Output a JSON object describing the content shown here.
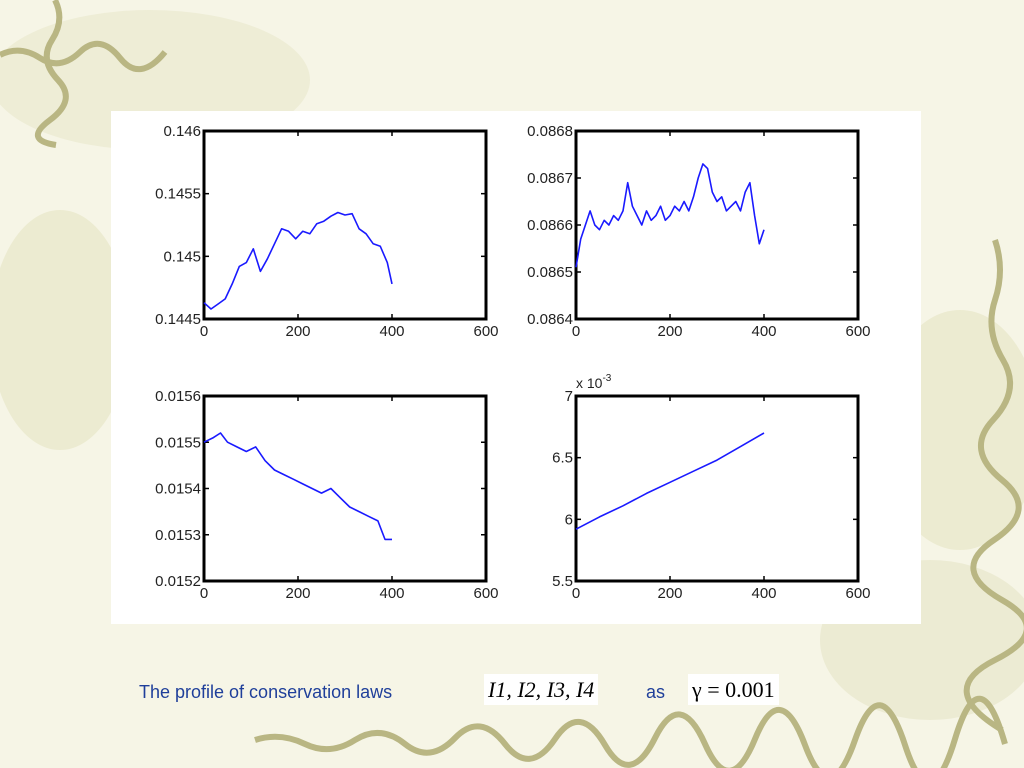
{
  "caption": {
    "text": "The profile of conservation laws",
    "variables": "I1, I2, I3, I4",
    "connector": "as",
    "parameter": "γ = 0.001"
  },
  "colors": {
    "line": "#1a1aff",
    "caption": "#1f3f9a",
    "frame": "#000000",
    "vine": "#b9b683"
  },
  "chart_data": [
    {
      "type": "line",
      "xlim": [
        0,
        600
      ],
      "ylim": [
        0.1445,
        0.146
      ],
      "xticks": [
        0,
        200,
        400,
        600
      ],
      "xtick_labels": [
        "0",
        "200",
        "400",
        "600"
      ],
      "yticks": [
        0.1445,
        0.145,
        0.1455,
        0.146
      ],
      "ytick_labels": [
        "0.1445",
        "0.145",
        "0.1455",
        "0.146"
      ],
      "multiplier": "",
      "series": [
        {
          "x": [
            0,
            15,
            30,
            45,
            60,
            75,
            90,
            105,
            120,
            135,
            150,
            165,
            180,
            195,
            210,
            225,
            240,
            255,
            270,
            285,
            300,
            315,
            330,
            345,
            360,
            375,
            390,
            400
          ],
          "y": [
            0.14463,
            0.14458,
            0.14462,
            0.14466,
            0.14478,
            0.14492,
            0.14495,
            0.14506,
            0.14488,
            0.14498,
            0.1451,
            0.14522,
            0.1452,
            0.14514,
            0.1452,
            0.14518,
            0.14526,
            0.14528,
            0.14532,
            0.14535,
            0.14533,
            0.14534,
            0.14522,
            0.14518,
            0.1451,
            0.14508,
            0.14495,
            0.14478
          ]
        }
      ]
    },
    {
      "type": "line",
      "xlim": [
        0,
        600
      ],
      "ylim": [
        0.0864,
        0.0868
      ],
      "xticks": [
        0,
        200,
        400,
        600
      ],
      "xtick_labels": [
        "0",
        "200",
        "400",
        "600"
      ],
      "yticks": [
        0.0864,
        0.0865,
        0.0866,
        0.0867,
        0.0868
      ],
      "ytick_labels": [
        "0.0864",
        "0.0865",
        "0.0866",
        "0.0867",
        "0.0868"
      ],
      "multiplier": "",
      "series": [
        {
          "x": [
            0,
            10,
            20,
            30,
            40,
            50,
            60,
            70,
            80,
            90,
            100,
            110,
            120,
            130,
            140,
            150,
            160,
            170,
            180,
            190,
            200,
            210,
            220,
            230,
            240,
            250,
            260,
            270,
            280,
            290,
            300,
            310,
            320,
            330,
            340,
            350,
            360,
            370,
            380,
            390,
            400
          ],
          "y": [
            0.08651,
            0.08657,
            0.0866,
            0.08663,
            0.0866,
            0.08659,
            0.08661,
            0.0866,
            0.08662,
            0.08661,
            0.08663,
            0.08669,
            0.08664,
            0.08662,
            0.0866,
            0.08663,
            0.08661,
            0.08662,
            0.08664,
            0.08661,
            0.08662,
            0.08664,
            0.08663,
            0.08665,
            0.08663,
            0.08666,
            0.0867,
            0.08673,
            0.08672,
            0.08667,
            0.08665,
            0.08666,
            0.08663,
            0.08664,
            0.08665,
            0.08663,
            0.08667,
            0.08669,
            0.08662,
            0.08656,
            0.08659
          ]
        }
      ]
    },
    {
      "type": "line",
      "xlim": [
        0,
        600
      ],
      "ylim": [
        0.0152,
        0.0156
      ],
      "xticks": [
        0,
        200,
        400,
        600
      ],
      "xtick_labels": [
        "0",
        "200",
        "400",
        "600"
      ],
      "yticks": [
        0.0152,
        0.0153,
        0.0154,
        0.0155,
        0.0156
      ],
      "ytick_labels": [
        "0.0152",
        "0.0153",
        "0.0154",
        "0.0155",
        "0.0156"
      ],
      "multiplier": "",
      "series": [
        {
          "x": [
            0,
            20,
            35,
            50,
            70,
            90,
            110,
            130,
            150,
            170,
            190,
            210,
            230,
            250,
            270,
            290,
            310,
            330,
            350,
            370,
            385,
            400
          ],
          "y": [
            0.0155,
            0.01551,
            0.01552,
            0.0155,
            0.01549,
            0.01548,
            0.01549,
            0.01546,
            0.01544,
            0.01543,
            0.01542,
            0.01541,
            0.0154,
            0.01539,
            0.0154,
            0.01538,
            0.01536,
            0.01535,
            0.01534,
            0.01533,
            0.01529,
            0.01529
          ]
        }
      ]
    },
    {
      "type": "line",
      "xlim": [
        0,
        600
      ],
      "ylim": [
        5.5,
        7
      ],
      "xticks": [
        0,
        200,
        400,
        600
      ],
      "xtick_labels": [
        "0",
        "200",
        "400",
        "600"
      ],
      "yticks": [
        5.5,
        6,
        6.5,
        7
      ],
      "ytick_labels": [
        "5.5",
        "6",
        "6.5",
        "7"
      ],
      "multiplier": "x 10^-3",
      "series": [
        {
          "x": [
            0,
            50,
            100,
            150,
            200,
            250,
            300,
            350,
            400
          ],
          "y": [
            5.92,
            6.02,
            6.11,
            6.21,
            6.3,
            6.39,
            6.48,
            6.59,
            6.7
          ]
        }
      ]
    }
  ]
}
